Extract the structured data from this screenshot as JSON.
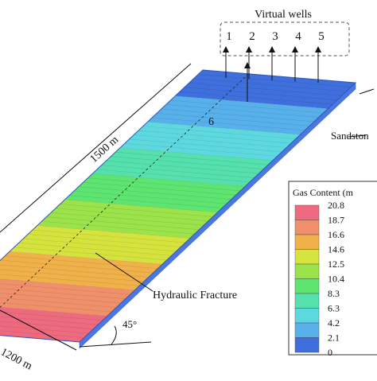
{
  "wells": {
    "title": "Virtual wells",
    "labels": [
      "1",
      "2",
      "3",
      "4",
      "5"
    ]
  },
  "well_6": "6",
  "length_label": "1500 m",
  "width_label": "1200 m",
  "angle_label": "45°",
  "sandstone_label": "Sandston",
  "fracture_label": "Hydraulic Fracture",
  "legend": {
    "title": "Gas Content (m",
    "labels": [
      "20.8",
      "18.7",
      "16.6",
      "14.6",
      "12.5",
      "10.4",
      "8.3",
      "6.3",
      "4.2",
      "2.1",
      "0"
    ]
  }
}
